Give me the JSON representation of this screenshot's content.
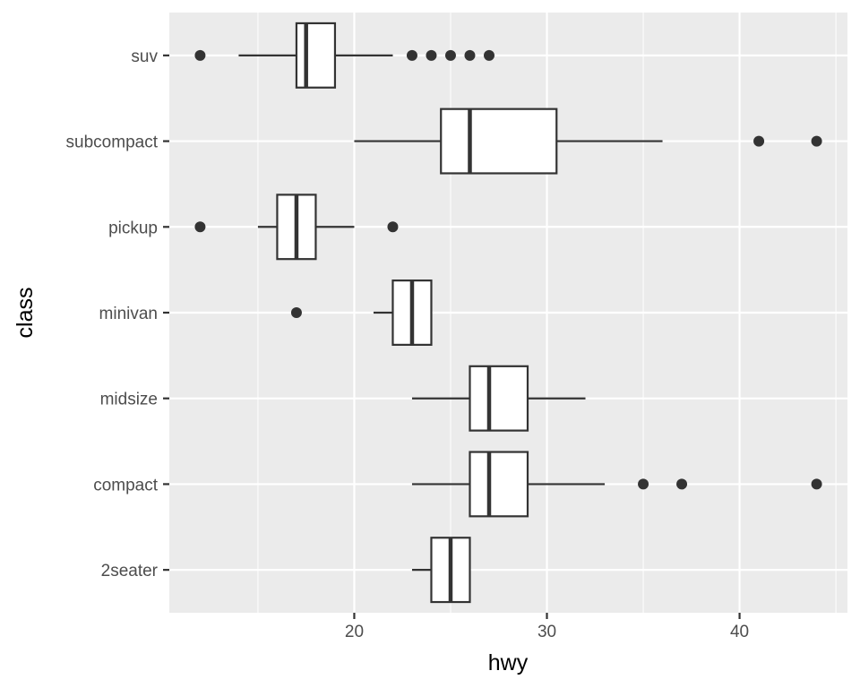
{
  "chart_data": {
    "type": "boxplot",
    "orientation": "horizontal",
    "xlabel": "hwy",
    "ylabel": "class",
    "xlim": [
      10.4,
      45.6
    ],
    "x_ticks": [
      20,
      30,
      40
    ],
    "x_tick_labels": [
      "20",
      "30",
      "40"
    ],
    "grid": true,
    "categories": [
      "2seater",
      "compact",
      "midsize",
      "minivan",
      "pickup",
      "subcompact",
      "suv"
    ],
    "boxes": [
      {
        "category": "2seater",
        "whisker_low": 23,
        "q1": 24,
        "median": 25,
        "q3": 26,
        "whisker_high": 26,
        "outliers": []
      },
      {
        "category": "compact",
        "whisker_low": 23,
        "q1": 26,
        "median": 27,
        "q3": 29,
        "whisker_high": 33,
        "outliers": [
          35,
          37,
          44
        ]
      },
      {
        "category": "midsize",
        "whisker_low": 23,
        "q1": 26,
        "median": 27,
        "q3": 29,
        "whisker_high": 32,
        "outliers": []
      },
      {
        "category": "minivan",
        "whisker_low": 21,
        "q1": 22,
        "median": 23,
        "q3": 24,
        "whisker_high": 24,
        "outliers": [
          17
        ]
      },
      {
        "category": "pickup",
        "whisker_low": 15,
        "q1": 16,
        "median": 17,
        "q3": 18,
        "whisker_high": 20,
        "outliers": [
          12,
          22
        ]
      },
      {
        "category": "subcompact",
        "whisker_low": 20,
        "q1": 24.5,
        "median": 26,
        "q3": 30.5,
        "whisker_high": 36,
        "outliers": [
          41,
          44
        ]
      },
      {
        "category": "suv",
        "whisker_low": 14,
        "q1": 17,
        "median": 17.5,
        "q3": 19,
        "whisker_high": 22,
        "outliers": [
          12,
          23,
          24,
          25,
          26,
          27
        ]
      }
    ],
    "colors": {
      "panel_background": "#ebebeb",
      "grid_major": "#ffffff",
      "box_fill": "#ffffff",
      "box_stroke": "#333333",
      "outlier": "#333333"
    }
  }
}
